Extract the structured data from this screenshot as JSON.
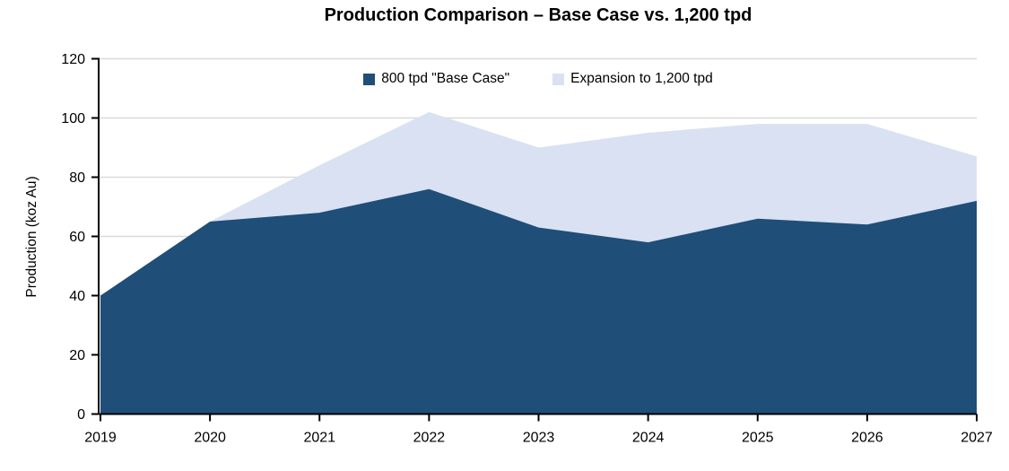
{
  "chart": {
    "title": "Production Comparison – Base Case vs. 1,200 tpd"
  },
  "chart_data": {
    "type": "area",
    "stacked": true,
    "title": "Production Comparison – Base Case vs. 1,200 tpd",
    "xlabel": "",
    "ylabel": "Production (koz Au)",
    "categories": [
      "2019",
      "2020",
      "2021",
      "2022",
      "2023",
      "2024",
      "2025",
      "2026",
      "2027"
    ],
    "series": [
      {
        "name": "800 tpd \"Base Case\"",
        "color": "#1F4E79",
        "values": [
          40,
          65,
          68,
          76,
          63,
          58,
          66,
          64,
          72
        ]
      },
      {
        "name": "Expansion to 1,200 tpd",
        "color": "#D9E1F2",
        "values": [
          0,
          0,
          16,
          26,
          27,
          37,
          32,
          34,
          15
        ]
      }
    ],
    "stacked_totals": [
      40,
      65,
      84,
      102,
      90,
      95,
      98,
      98,
      87
    ],
    "ylim": [
      0,
      120
    ],
    "y_ticks": [
      0,
      20,
      40,
      60,
      80,
      100,
      120
    ],
    "grid": true,
    "gridline_color": "#D9D9D9",
    "axis_color": "#000000",
    "legend_position": "top-center"
  }
}
